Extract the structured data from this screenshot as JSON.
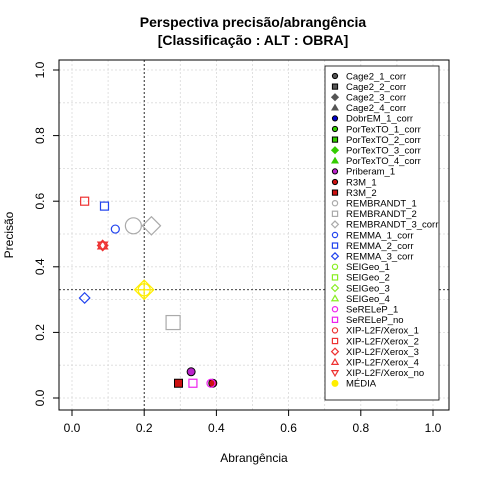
{
  "chart_data": {
    "type": "scatter",
    "title": "Perspectiva precisão/abrangência",
    "subtitle": "[Classificação : ALT : OBRA]",
    "xlabel": "Abrangência",
    "ylabel": "Precisão",
    "xlim": [
      0,
      1
    ],
    "ylim": [
      0,
      1
    ],
    "xticks": [
      "0.0",
      "0.2",
      "0.4",
      "0.6",
      "0.8",
      "1.0"
    ],
    "yticks": [
      "0.0",
      "0.2",
      "0.4",
      "0.6",
      "0.8",
      "1.0"
    ],
    "grid": true,
    "legend_position": "right",
    "reference_lines": {
      "x": 0.2,
      "y": 0.33
    },
    "series": [
      {
        "name": "Cage2_1_corr",
        "marker": "circle",
        "filled": true,
        "color": "#555555",
        "points": []
      },
      {
        "name": "Cage2_2_corr",
        "marker": "square",
        "filled": true,
        "color": "#555555",
        "points": []
      },
      {
        "name": "Cage2_3_corr",
        "marker": "diamond",
        "filled": true,
        "color": "#555555",
        "points": []
      },
      {
        "name": "Cage2_4_corr",
        "marker": "triangle",
        "filled": true,
        "color": "#555555",
        "points": []
      },
      {
        "name": "DobrEM_1_corr",
        "marker": "circle",
        "filled": true,
        "color": "#0000cc",
        "points": []
      },
      {
        "name": "PorTexTO_1_corr",
        "marker": "circle",
        "filled": true,
        "color": "#33cc00",
        "points": []
      },
      {
        "name": "PorTexTO_2_corr",
        "marker": "square",
        "filled": true,
        "color": "#33cc00",
        "points": []
      },
      {
        "name": "PorTexTO_3_corr",
        "marker": "diamond",
        "filled": true,
        "color": "#33cc00",
        "points": []
      },
      {
        "name": "PorTexTO_4_corr",
        "marker": "triangle",
        "filled": true,
        "color": "#33cc00",
        "points": []
      },
      {
        "name": "Priberam_1",
        "marker": "circle",
        "filled": true,
        "color": "#bb22cc",
        "points": [
          [
            0.33,
            0.08
          ]
        ]
      },
      {
        "name": "R3M_1",
        "marker": "circle",
        "filled": true,
        "color": "#cc1111",
        "points": [
          [
            0.39,
            0.045
          ]
        ]
      },
      {
        "name": "R3M_2",
        "marker": "square",
        "filled": true,
        "color": "#cc1111",
        "points": [
          [
            0.295,
            0.045
          ]
        ]
      },
      {
        "name": "REMBRANDT_1",
        "marker": "circle",
        "filled": false,
        "color": "#aaaaaa",
        "points": [
          [
            0.17,
            0.525
          ]
        ]
      },
      {
        "name": "REMBRANDT_2",
        "marker": "square",
        "filled": false,
        "color": "#aaaaaa",
        "points": [
          [
            0.28,
            0.23
          ]
        ]
      },
      {
        "name": "REMBRANDT_3_corr",
        "marker": "diamond",
        "filled": false,
        "color": "#aaaaaa",
        "points": [
          [
            0.22,
            0.525
          ]
        ]
      },
      {
        "name": "REMMA_1_corr",
        "marker": "circle",
        "filled": false,
        "color": "#2244ee",
        "points": [
          [
            0.12,
            0.515
          ]
        ]
      },
      {
        "name": "REMMA_2_corr",
        "marker": "square",
        "filled": false,
        "color": "#2244ee",
        "points": [
          [
            0.09,
            0.585
          ]
        ]
      },
      {
        "name": "REMMA_3_corr",
        "marker": "diamond",
        "filled": false,
        "color": "#2244ee",
        "points": [
          [
            0.035,
            0.305
          ]
        ]
      },
      {
        "name": "SEIGeo_1",
        "marker": "circle",
        "filled": false,
        "color": "#88ee22",
        "points": []
      },
      {
        "name": "SEIGeo_2",
        "marker": "square",
        "filled": false,
        "color": "#88ee22",
        "points": []
      },
      {
        "name": "SEIGeo_3",
        "marker": "diamond",
        "filled": false,
        "color": "#88ee22",
        "points": []
      },
      {
        "name": "SEIGeo_4",
        "marker": "triangle",
        "filled": false,
        "color": "#88ee22",
        "points": []
      },
      {
        "name": "SeRELeP_1",
        "marker": "circle",
        "filled": false,
        "color": "#ee22ee",
        "points": [
          [
            0.385,
            0.045
          ]
        ]
      },
      {
        "name": "SeRELeP_no",
        "marker": "square",
        "filled": false,
        "color": "#ee22ee",
        "points": [
          [
            0.335,
            0.045
          ]
        ]
      },
      {
        "name": "XIP-L2F/Xerox_1",
        "marker": "circle",
        "filled": false,
        "color": "#ee3333",
        "points": [
          [
            0.085,
            0.465
          ]
        ]
      },
      {
        "name": "XIP-L2F/Xerox_2",
        "marker": "square",
        "filled": false,
        "color": "#ee3333",
        "points": [
          [
            0.035,
            0.6
          ]
        ]
      },
      {
        "name": "XIP-L2F/Xerox_3",
        "marker": "diamond",
        "filled": false,
        "color": "#ee3333",
        "points": [
          [
            0.085,
            0.465
          ]
        ]
      },
      {
        "name": "XIP-L2F/Xerox_4",
        "marker": "triangle",
        "filled": false,
        "color": "#ee3333",
        "points": [
          [
            0.085,
            0.465
          ]
        ]
      },
      {
        "name": "XIP-L2F/Xerox_no",
        "marker": "triangle-down",
        "filled": false,
        "color": "#ee3333",
        "points": [
          [
            0.085,
            0.465
          ]
        ]
      },
      {
        "name": "MÉDIA",
        "marker": "crosshair",
        "filled": false,
        "color": "#ffee00",
        "points": [
          [
            0.2,
            0.33
          ]
        ]
      }
    ]
  }
}
